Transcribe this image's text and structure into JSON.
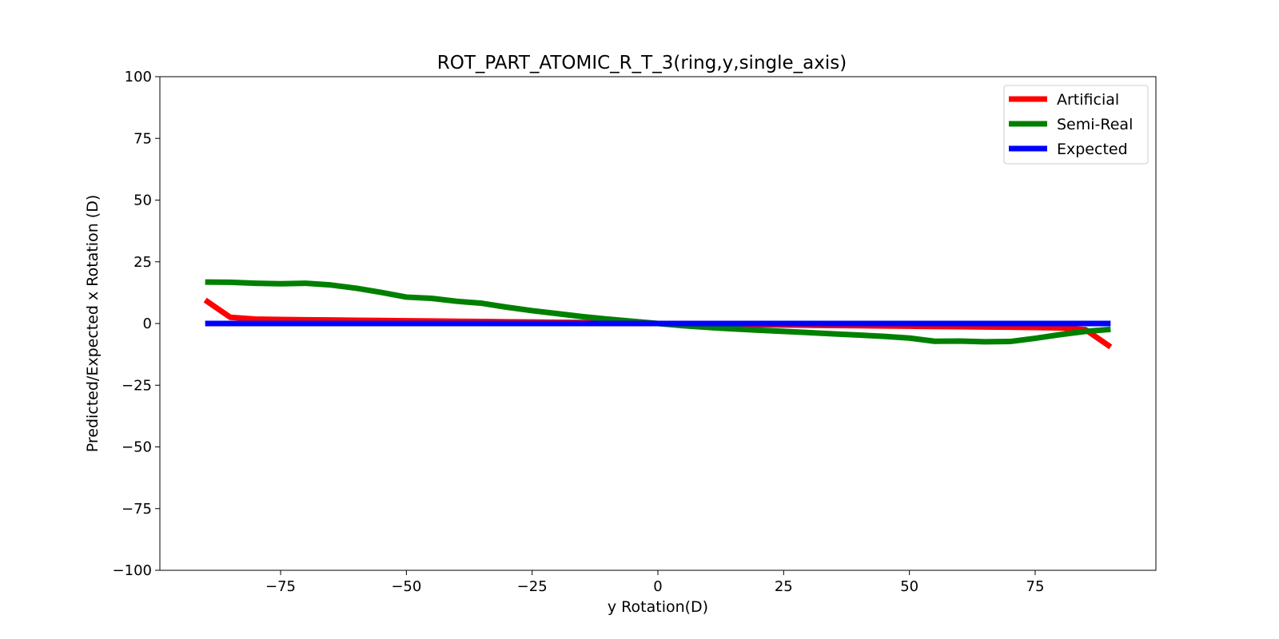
{
  "chart_data": {
    "type": "line",
    "title": "ROT_PART_ATOMIC_R_T_3(ring,y,single_axis)",
    "xlabel": "y Rotation(D)",
    "ylabel": "Predicted/Expected x Rotation (D)",
    "xlim": [
      -99,
      99
    ],
    "ylim": [
      -100,
      100
    ],
    "xticks": [
      -75,
      -50,
      -25,
      0,
      25,
      50,
      75
    ],
    "xtick_labels": [
      "−75",
      "−50",
      "−25",
      "0",
      "25",
      "50",
      "75"
    ],
    "yticks": [
      100,
      75,
      50,
      25,
      0,
      -25,
      -50,
      -75,
      -100
    ],
    "ytick_labels": [
      "100",
      "75",
      "50",
      "25",
      "0",
      "−25",
      "−50",
      "−75",
      "−100"
    ],
    "grid": false,
    "legend_position": "top-right",
    "x": [
      -90,
      -85,
      -80,
      -75,
      -70,
      -65,
      -60,
      -55,
      -50,
      -45,
      -40,
      -35,
      -30,
      -25,
      -20,
      -15,
      -10,
      -5,
      0,
      5,
      10,
      15,
      20,
      25,
      30,
      35,
      40,
      45,
      50,
      55,
      60,
      65,
      70,
      75,
      80,
      85,
      90
    ],
    "series": [
      {
        "name": "Artificial",
        "color": "#ff0000",
        "values": [
          9.5,
          2.5,
          1.8,
          1.6,
          1.5,
          1.4,
          1.3,
          1.2,
          1.1,
          1.0,
          0.9,
          0.8,
          0.7,
          0.6,
          0.5,
          0.4,
          0.3,
          0.15,
          0,
          -0.15,
          -0.3,
          -0.4,
          -0.5,
          -0.6,
          -0.7,
          -0.8,
          -0.9,
          -1.0,
          -1.1,
          -1.2,
          -1.3,
          -1.4,
          -1.5,
          -1.6,
          -1.8,
          -2.5,
          -9.5
        ]
      },
      {
        "name": "Semi-Real",
        "color": "#008000",
        "values": [
          16.8,
          16.7,
          16.3,
          16.1,
          16.3,
          15.6,
          14.3,
          12.6,
          10.7,
          10.2,
          9.0,
          8.2,
          6.6,
          5.2,
          4.0,
          2.8,
          1.8,
          0.9,
          0,
          -0.9,
          -1.6,
          -2.2,
          -2.7,
          -3.2,
          -3.7,
          -4.2,
          -4.7,
          -5.2,
          -5.9,
          -7.2,
          -7.1,
          -7.4,
          -7.3,
          -6.0,
          -4.5,
          -3.2,
          -2.4
        ]
      },
      {
        "name": "Expected",
        "color": "#0000ff",
        "values": [
          0,
          0,
          0,
          0,
          0,
          0,
          0,
          0,
          0,
          0,
          0,
          0,
          0,
          0,
          0,
          0,
          0,
          0,
          0,
          0,
          0,
          0,
          0,
          0,
          0,
          0,
          0,
          0,
          0,
          0,
          0,
          0,
          0,
          0,
          0,
          0,
          0
        ]
      }
    ]
  }
}
